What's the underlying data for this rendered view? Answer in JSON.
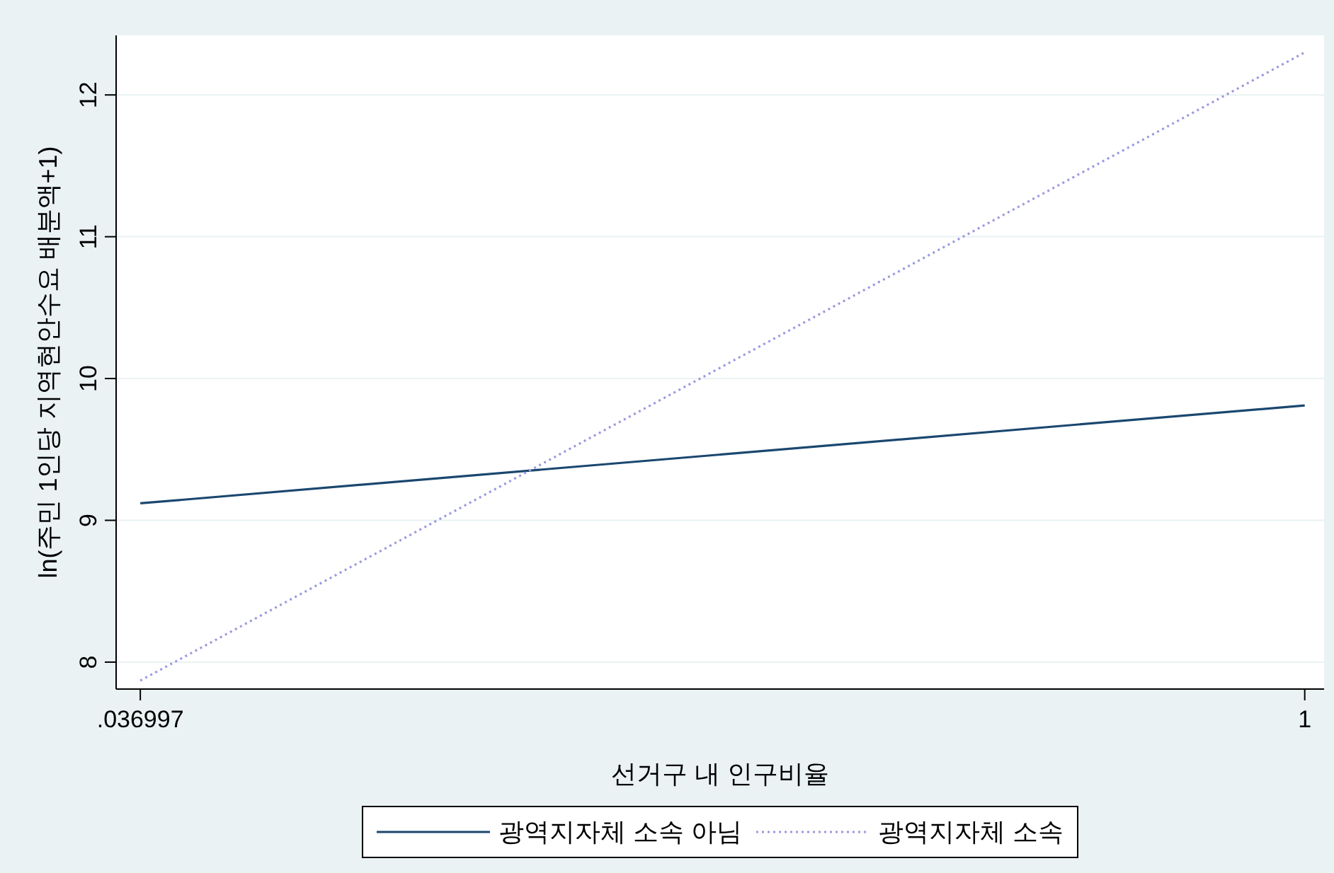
{
  "chart_data": {
    "type": "line",
    "xlabel": "선거구 내 인구비율",
    "ylabel": "ln(주민 1인당 지역현안수요 배분액+1)",
    "x": [
      0.036997,
      1
    ],
    "series": [
      {
        "name": "광역지자체 소속 아님",
        "color": "#1a476f",
        "line_style": "solid",
        "values": [
          9.12,
          9.81
        ]
      },
      {
        "name": "광역지자체 소속",
        "color": "#9a9ae0",
        "line_style": "dotted",
        "values": [
          7.87,
          12.3
        ]
      }
    ],
    "xlim": [
      0.017,
      1.016
    ],
    "ylim": [
      7.81,
      12.42
    ],
    "xticks": [
      {
        "value": 0.036997,
        "label": ".036997"
      },
      1
    ],
    "yticks": [
      8,
      9,
      10,
      11,
      12
    ],
    "grid": "y",
    "legend": "bottom"
  }
}
